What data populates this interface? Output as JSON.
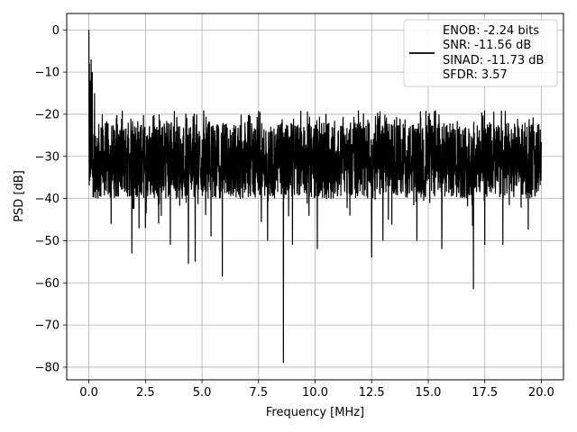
{
  "chart_data": {
    "type": "line",
    "xlabel": "Frequency [MHz]",
    "ylabel": "PSD [dB]",
    "xlim": [
      -0.98,
      20.98
    ],
    "ylim": [
      -83.0,
      3.9
    ],
    "xticks": [
      0.0,
      2.5,
      5.0,
      7.5,
      10.0,
      12.5,
      15.0,
      17.5,
      20.0
    ],
    "xtick_labels": [
      "0.0",
      "2.5",
      "5.0",
      "7.5",
      "10.0",
      "12.5",
      "15.0",
      "17.5",
      "20.0"
    ],
    "yticks": [
      0,
      -10,
      -20,
      -30,
      -40,
      -50,
      -60,
      -70,
      -80
    ],
    "ytick_labels": [
      "0",
      "−10",
      "−20",
      "−30",
      "−40",
      "−50",
      "−60",
      "−70",
      "−80"
    ],
    "grid": true,
    "legend_position": "top-right",
    "legend_lines": [
      "ENOB: -2.24 bits",
      "SNR: -11.56 dB",
      "SINAD: -11.73 dB",
      "SFDR: 3.57"
    ],
    "series": [
      {
        "color": "#000000",
        "x_range": [
          0.0,
          20.0
        ],
        "noise_band_dB": [
          -40,
          -22
        ],
        "peaks": [
          {
            "x": 0.0,
            "y": 0.0
          },
          {
            "x": 0.02,
            "y": -8.0
          },
          {
            "x": 0.05,
            "y": -12.0
          },
          {
            "x": 0.1,
            "y": -7.0
          },
          {
            "x": 0.15,
            "y": -10.0
          },
          {
            "x": 0.25,
            "y": -15.0
          },
          {
            "x": 0.4,
            "y": -17.5
          }
        ],
        "notable_dips": [
          {
            "x": 0.4,
            "y": -40.0
          },
          {
            "x": 1.9,
            "y": -53.0
          },
          {
            "x": 2.5,
            "y": -47.0
          },
          {
            "x": 3.6,
            "y": -51.0
          },
          {
            "x": 4.4,
            "y": -55.5
          },
          {
            "x": 4.7,
            "y": -55.0
          },
          {
            "x": 5.4,
            "y": -49.0
          },
          {
            "x": 5.9,
            "y": -58.5
          },
          {
            "x": 7.9,
            "y": -50.0
          },
          {
            "x": 8.6,
            "y": -79.0
          },
          {
            "x": 9.0,
            "y": -51.0
          },
          {
            "x": 10.1,
            "y": -52.0
          },
          {
            "x": 12.5,
            "y": -54.0
          },
          {
            "x": 13.0,
            "y": -50.0
          },
          {
            "x": 14.5,
            "y": -50.0
          },
          {
            "x": 15.6,
            "y": -52.0
          },
          {
            "x": 17.0,
            "y": -61.5
          },
          {
            "x": 17.5,
            "y": -51.0
          },
          {
            "x": 18.3,
            "y": -51.0
          }
        ]
      }
    ]
  }
}
